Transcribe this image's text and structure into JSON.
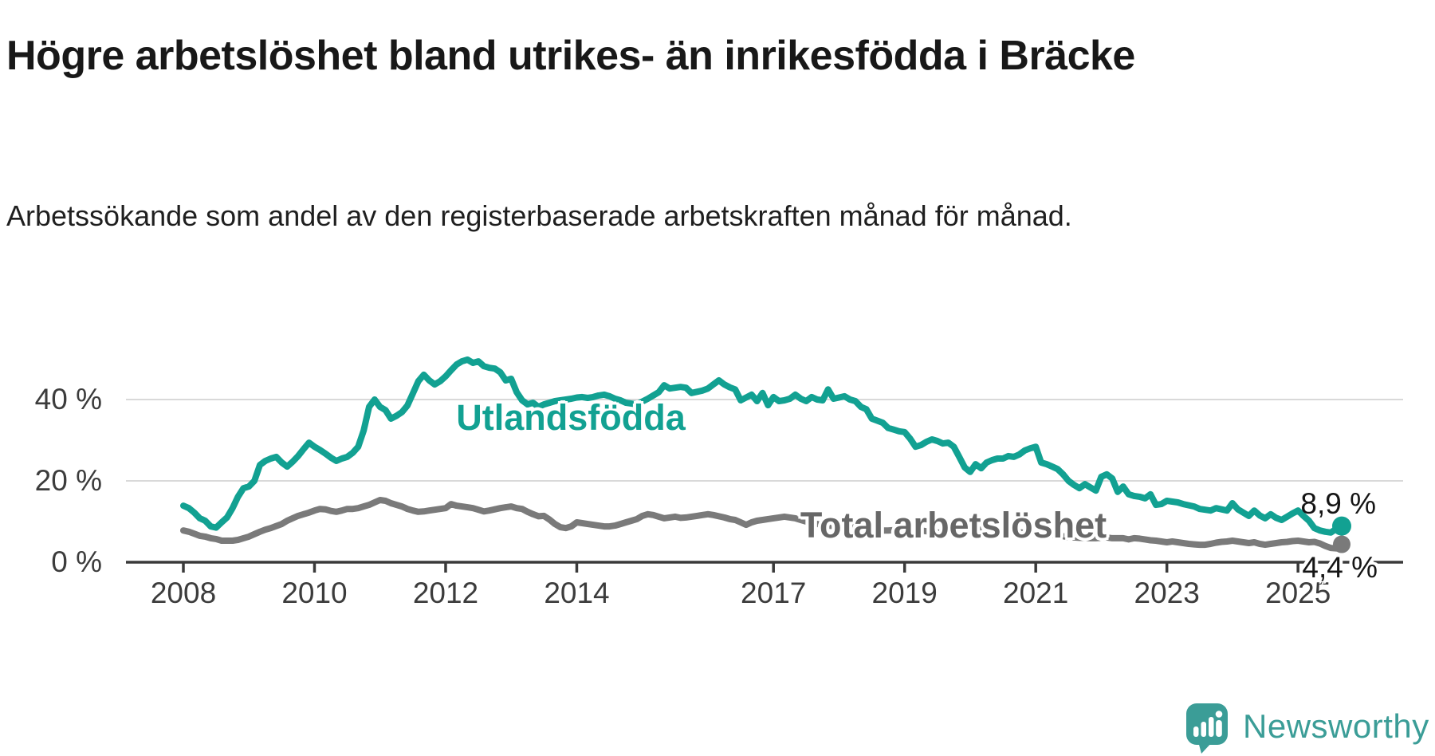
{
  "header": {
    "title": "Högre arbetslöshet bland utrikes- än inrikesfödda i Bräcke",
    "subtitle": "Arbetssökande som andel av den registerbaserade arbetskraften månad för månad."
  },
  "footer": {
    "brand": "Newsworthy"
  },
  "colors": {
    "accent_teal": "#12a192",
    "line_gray": "#7a7a7a",
    "logo_teal": "#3b9d97",
    "axis": "#3a3a3a",
    "gridline": "#d9d9d9"
  },
  "chart_data": {
    "type": "line",
    "title": "Högre arbetslöshet bland utrikes- än inrikesfödda i Bräcke",
    "subtitle": "Arbetssökande som andel av den registerbaserade arbetskraften månad för månad.",
    "unit": "%",
    "frequency": "monthly",
    "start": "2008-01",
    "end": "2025-09",
    "ylim": [
      0,
      52
    ],
    "grid": "horizontal-only",
    "legend_position": "inline-labels",
    "yticks": [
      {
        "value": 0,
        "label": "0 %"
      },
      {
        "value": 20,
        "label": "20 %"
      },
      {
        "value": 40,
        "label": "40 %"
      }
    ],
    "xticks": [
      2008,
      2010,
      2012,
      2014,
      2017,
      2019,
      2021,
      2023,
      2025
    ],
    "series": [
      {
        "name": "Utlandsfödda",
        "color": "#12a192",
        "end_label": "8,9 %",
        "end_value": 8.9,
        "values": [
          13.9,
          13.3,
          12.2,
          10.8,
          10.2,
          8.8,
          8.5,
          9.8,
          11,
          13.3,
          16.1,
          18.2,
          18.6,
          20,
          23.9,
          24.9,
          25.5,
          25.9,
          24.5,
          23.5,
          24.7,
          26.1,
          27.8,
          29.4,
          28.4,
          27.6,
          26.7,
          25.7,
          24.9,
          25.5,
          25.9,
          26.9,
          28.4,
          32.4,
          38.2,
          40,
          38.2,
          37.4,
          35.3,
          36,
          36.9,
          38.5,
          41.5,
          44.5,
          46.1,
          44.7,
          43.7,
          44.5,
          45.7,
          47.2,
          48.6,
          49.4,
          49.8,
          49,
          49.4,
          48.2,
          47.8,
          47.6,
          46.7,
          44.7,
          45.1,
          41.8,
          39.8,
          38.8,
          39.2,
          38.2,
          38.8,
          39.2,
          39.6,
          39.8,
          40,
          40.2,
          40.5,
          40.6,
          40.4,
          40.6,
          41,
          41.2,
          40.8,
          40.2,
          39.8,
          39.2,
          39,
          38.8,
          39.5,
          40.2,
          41,
          41.8,
          43.5,
          42.7,
          42.9,
          43.1,
          42.9,
          41.6,
          41.9,
          42.2,
          42.7,
          43.7,
          44.7,
          43.7,
          43,
          42.5,
          39.8,
          40.5,
          41.2,
          39.6,
          41.6,
          38.6,
          40.6,
          39.6,
          39.8,
          40.2,
          41.2,
          40.2,
          39.6,
          40.6,
          40,
          39.8,
          42.5,
          40.2,
          40.5,
          40.8,
          40,
          39.6,
          38.2,
          37.6,
          35.3,
          34.8,
          34.3,
          33,
          32.6,
          32.2,
          32,
          30.4,
          28.4,
          28.8,
          29.6,
          30.2,
          29.8,
          29.2,
          29.4,
          28.4,
          25.9,
          23.3,
          22.2,
          24.1,
          23.1,
          24.5,
          25.1,
          25.5,
          25.5,
          26.1,
          25.9,
          26.5,
          27.5,
          28,
          28.4,
          24.5,
          24.1,
          23.5,
          22.9,
          21.6,
          20,
          19,
          18.2,
          19.2,
          18.4,
          17.6,
          21,
          21.6,
          20.6,
          17.3,
          18.6,
          16.7,
          16.3,
          16.1,
          15.7,
          16.7,
          14.1,
          14.3,
          15.1,
          14.9,
          14.7,
          14.3,
          14,
          13.7,
          13.1,
          12.9,
          12.7,
          13.3,
          13,
          12.7,
          14.5,
          13,
          12.2,
          11.4,
          12.7,
          11.5,
          10.8,
          11.8,
          10.9,
          10.4,
          11.2,
          12,
          12.7,
          11.4,
          10.2,
          8.4,
          7.8,
          7.5,
          7.3,
          8.2,
          8.9
        ]
      },
      {
        "name": "Total arbetslöshet",
        "color": "#7a7a7a",
        "end_label": "4,4 %",
        "end_value": 4.4,
        "values": [
          7.8,
          7.5,
          7,
          6.5,
          6.3,
          5.9,
          5.7,
          5.3,
          5.3,
          5.3,
          5.5,
          5.9,
          6.3,
          6.9,
          7.5,
          8,
          8.4,
          8.9,
          9.4,
          10.2,
          10.8,
          11.4,
          11.8,
          12.2,
          12.7,
          13.1,
          13,
          12.6,
          12.4,
          12.7,
          13.1,
          13.1,
          13.3,
          13.7,
          14.1,
          14.7,
          15.3,
          15.1,
          14.5,
          14.1,
          13.7,
          13.1,
          12.7,
          12.4,
          12.5,
          12.7,
          12.9,
          13.1,
          13.3,
          14.3,
          13.9,
          13.7,
          13.5,
          13.3,
          12.9,
          12.5,
          12.7,
          13,
          13.3,
          13.5,
          13.7,
          13.3,
          13.1,
          12.4,
          11.8,
          11.3,
          11.4,
          10.5,
          9.4,
          8.6,
          8.4,
          8.8,
          9.8,
          9.6,
          9.4,
          9.2,
          9,
          8.8,
          8.8,
          9,
          9.4,
          9.8,
          10.2,
          10.6,
          11.4,
          11.8,
          11.6,
          11.2,
          10.8,
          11,
          11.2,
          10.9,
          11,
          11.2,
          11.4,
          11.6,
          11.8,
          11.6,
          11.3,
          11,
          10.6,
          10.4,
          9.8,
          9.2,
          9.8,
          10.2,
          10.4,
          10.6,
          10.8,
          11,
          11.2,
          11,
          10.8,
          10.4,
          10,
          9.7,
          9.4,
          9.2,
          9,
          8.9,
          9,
          9.2,
          9,
          8.8,
          8.6,
          8.4,
          8.1,
          7.9,
          7.8,
          7.8,
          7.9,
          8,
          8.1,
          8.2,
          8,
          7.8,
          7.6,
          7.5,
          7.3,
          7.2,
          7.2,
          7.3,
          7.4,
          7.6,
          7.7,
          7.8,
          8,
          8.2,
          8.3,
          8.2,
          8,
          7.8,
          7.6,
          7.4,
          7.2,
          7.1,
          7.2,
          7.1,
          7,
          6.8,
          6.6,
          6.4,
          6.2,
          6.1,
          6,
          6,
          5.9,
          5.9,
          6,
          6.1,
          5.9,
          5.9,
          5.9,
          5.6,
          5.9,
          5.8,
          5.6,
          5.4,
          5.3,
          5.1,
          4.9,
          5.1,
          4.9,
          4.7,
          4.5,
          4.4,
          4.3,
          4.3,
          4.5,
          4.8,
          5,
          5.1,
          5.3,
          5.1,
          4.9,
          4.7,
          4.9,
          4.5,
          4.3,
          4.5,
          4.7,
          4.9,
          5,
          5.2,
          5.3,
          5.1,
          4.9,
          5,
          4.6,
          4,
          3.5,
          3.4,
          4.4
        ]
      }
    ]
  }
}
